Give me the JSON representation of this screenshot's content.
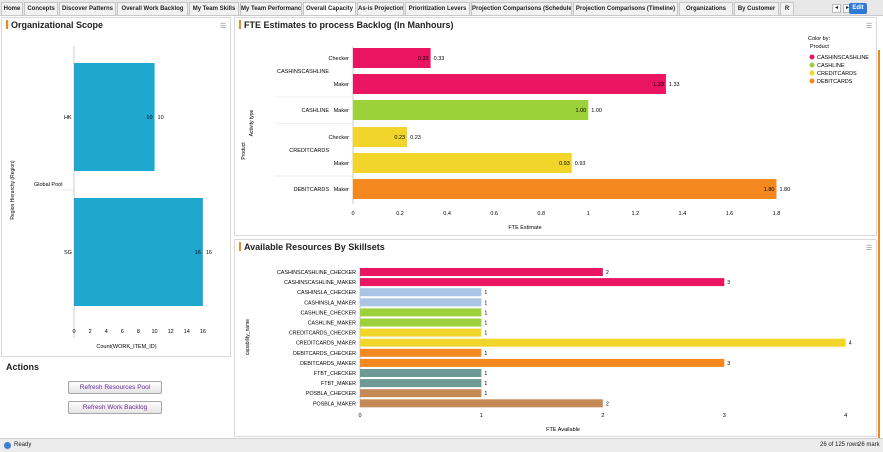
{
  "tabs": [
    {
      "label": "Home"
    },
    {
      "label": "Concepts"
    },
    {
      "label": "Discover Patterns"
    },
    {
      "label": "Overall Work Backlog"
    },
    {
      "label": "My Team Skills"
    },
    {
      "label": "My Team Performance"
    },
    {
      "label": "Overall Capacity"
    },
    {
      "label": "As-is Projection"
    },
    {
      "label": "Prioritization Levers"
    },
    {
      "label": "Projection Comparisons (Schedule)"
    },
    {
      "label": "Projection Comparisons (Timeline)"
    },
    {
      "label": "Organizations"
    },
    {
      "label": "By Customer"
    },
    {
      "label": "R"
    }
  ],
  "nav": {
    "prev": "◂",
    "next": "▸",
    "edit_label": "Edit"
  },
  "org_panel": {
    "title": "Organizational Scope",
    "chart_data": {
      "type": "bar",
      "title": "Organizational Scope",
      "ylabel": "Region Hierarchy (Region)",
      "xlabel": "Count(WORK_ITEM_ID)",
      "group_label": "Global Pool",
      "categories": [
        "HK",
        "SG"
      ],
      "values": [
        10,
        16
      ],
      "xlim": [
        0,
        18
      ],
      "xticks": [
        0,
        2,
        4,
        6,
        8,
        10,
        12,
        14,
        16
      ],
      "color": "#1fa8cf"
    }
  },
  "fte_panel": {
    "title": "FTE Estimates to process Backlog (In Manhours)",
    "chart_data": {
      "type": "bar",
      "title": "FTE Estimates to process Backlog (In Manhours)",
      "xlabel": "FTE Estimate",
      "ylabel_outer": "Product",
      "ylabel_inner": "Activity type",
      "xlim": [
        0,
        1.9
      ],
      "xticks": [
        "0",
        "0.2",
        "0.4",
        "0.6",
        "0.8",
        "1",
        "1.2",
        "1.4",
        "1.6",
        "1.8"
      ],
      "groups": [
        {
          "product": "CASHINSCASHLINE",
          "bars": [
            {
              "activity": "Checker",
              "value": 0.33,
              "inner_label": "0.33",
              "label": "0.33",
              "color": "#ea1560"
            },
            {
              "activity": "Maker",
              "value": 1.33,
              "inner_label": "1.33",
              "label": "1.33",
              "color": "#ea1560"
            }
          ]
        },
        {
          "product": "CASHLINE",
          "bars": [
            {
              "activity": "Maker",
              "value": 1.0,
              "inner_label": "1.00",
              "label": "1.00",
              "color": "#9cd13c"
            }
          ]
        },
        {
          "product": "CREDITCARDS",
          "bars": [
            {
              "activity": "Checker",
              "value": 0.23,
              "inner_label": "0.23",
              "label": "0.23",
              "color": "#f2d52a"
            },
            {
              "activity": "Maker",
              "value": 0.93,
              "inner_label": "0.93",
              "label": "0.93",
              "color": "#f2d52a"
            }
          ]
        },
        {
          "product": "DEBITCARDS",
          "bars": [
            {
              "activity": "Maker",
              "value": 1.8,
              "inner_label": "1.80",
              "label": "1.80",
              "color": "#f5891f"
            }
          ]
        }
      ],
      "legend": {
        "title": "Color by:",
        "subtitle": "Product",
        "items": [
          {
            "name": "CASHINSCASHLINE",
            "color": "#ea1560"
          },
          {
            "name": "CASHLINE",
            "color": "#9cd13c"
          },
          {
            "name": "CREDITCARDS",
            "color": "#f2d52a"
          },
          {
            "name": "DEBITCARDS",
            "color": "#f5891f"
          }
        ]
      }
    }
  },
  "res_panel": {
    "title": "Available Resources By Skillsets",
    "chart_data": {
      "type": "bar",
      "title": "Available Resources By Skillsets",
      "xlabel": "FTE Available",
      "ylabel": "capability_name",
      "xlim": [
        0,
        4.2
      ],
      "xticks": [
        "0",
        "1",
        "2",
        "3",
        "4"
      ],
      "categories": [
        "CASHINSCASHLINE_CHECKER",
        "CASHINSCASHLINE_MAKER",
        "CASHINSLA_CHECKER",
        "CASHINSLA_MAKER",
        "CASHLINE_CHECKER",
        "CASHLINE_MAKER",
        "CREDITCARDS_CHECKER",
        "CREDITCARDS_MAKER",
        "DEBITCARDS_CHECKER",
        "DEBITCARDS_MAKER",
        "FTBT_CHECKER",
        "FTBT_MAKER",
        "POSBLA_CHECKER",
        "POSBLA_MAKER"
      ],
      "values": [
        2,
        3,
        1,
        1,
        1,
        1,
        1,
        4,
        1,
        3,
        1,
        1,
        1,
        2
      ],
      "value_labels": [
        "2",
        "3",
        "1",
        "1",
        "1",
        "1",
        "1",
        "4",
        "1",
        "3",
        "1",
        "1",
        "1",
        "2"
      ],
      "colors": [
        "#ea1560",
        "#ea1560",
        "#a9c4e4",
        "#a9c4e4",
        "#9cd13c",
        "#9cd13c",
        "#f2d52a",
        "#f2d52a",
        "#f5891f",
        "#f5891f",
        "#6e9a95",
        "#6e9a95",
        "#c48a55",
        "#c48a55"
      ]
    }
  },
  "actions": {
    "title": "Actions",
    "refresh_pool": "Refresh Resources Pool",
    "refresh_backlog": "Refresh Work Backlog"
  },
  "status": {
    "text": "Ready",
    "rows": "26 of 125 rows",
    "marked": "26 mark"
  }
}
